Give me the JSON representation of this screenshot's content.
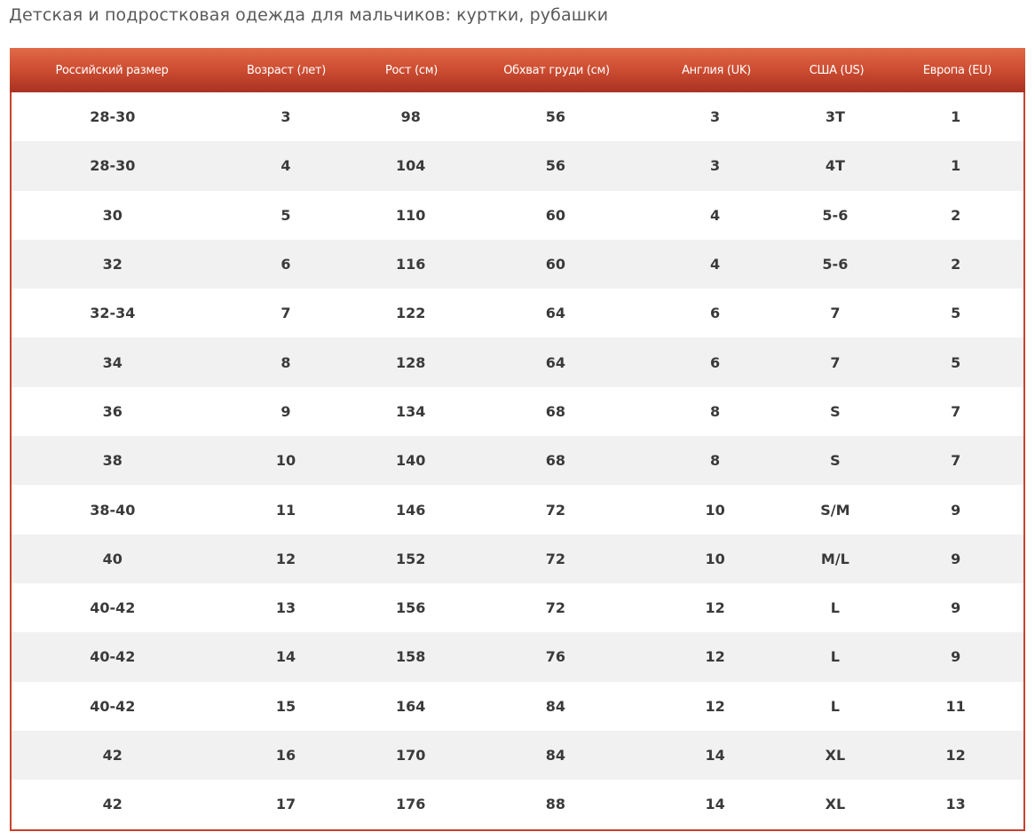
{
  "title": "Детская и подростковая одежда для мальчиков: куртки, рубашки",
  "table": {
    "headers": [
      "Российский размер",
      "Возраст (лет)",
      "Рост (см)",
      "Обхват груди (см)",
      "Англия (UK)",
      "США (US)",
      "Европа (EU)"
    ],
    "rows": [
      [
        "28-30",
        "3",
        "98",
        "56",
        "3",
        "3T",
        "1"
      ],
      [
        "28-30",
        "4",
        "104",
        "56",
        "3",
        "4T",
        "1"
      ],
      [
        "30",
        "5",
        "110",
        "60",
        "4",
        "5-6",
        "2"
      ],
      [
        "32",
        "6",
        "116",
        "60",
        "4",
        "5-6",
        "2"
      ],
      [
        "32-34",
        "7",
        "122",
        "64",
        "6",
        "7",
        "5"
      ],
      [
        "34",
        "8",
        "128",
        "64",
        "6",
        "7",
        "5"
      ],
      [
        "36",
        "9",
        "134",
        "68",
        "8",
        "S",
        "7"
      ],
      [
        "38",
        "10",
        "140",
        "68",
        "8",
        "S",
        "7"
      ],
      [
        "38-40",
        "11",
        "146",
        "72",
        "10",
        "S/M",
        "9"
      ],
      [
        "40",
        "12",
        "152",
        "72",
        "10",
        "M/L",
        "9"
      ],
      [
        "40-42",
        "13",
        "156",
        "72",
        "12",
        "L",
        "9"
      ],
      [
        "40-42",
        "14",
        "158",
        "76",
        "12",
        "L",
        "9"
      ],
      [
        "40-42",
        "15",
        "164",
        "84",
        "12",
        "L",
        "11"
      ],
      [
        "42",
        "16",
        "170",
        "84",
        "14",
        "XL",
        "12"
      ],
      [
        "42",
        "17",
        "176",
        "88",
        "14",
        "XL",
        "13"
      ]
    ]
  },
  "colors": {
    "header_top": "#e06a48",
    "header_bottom": "#a93222",
    "border": "#c8402c",
    "row_alt": "#f1f1f1"
  }
}
